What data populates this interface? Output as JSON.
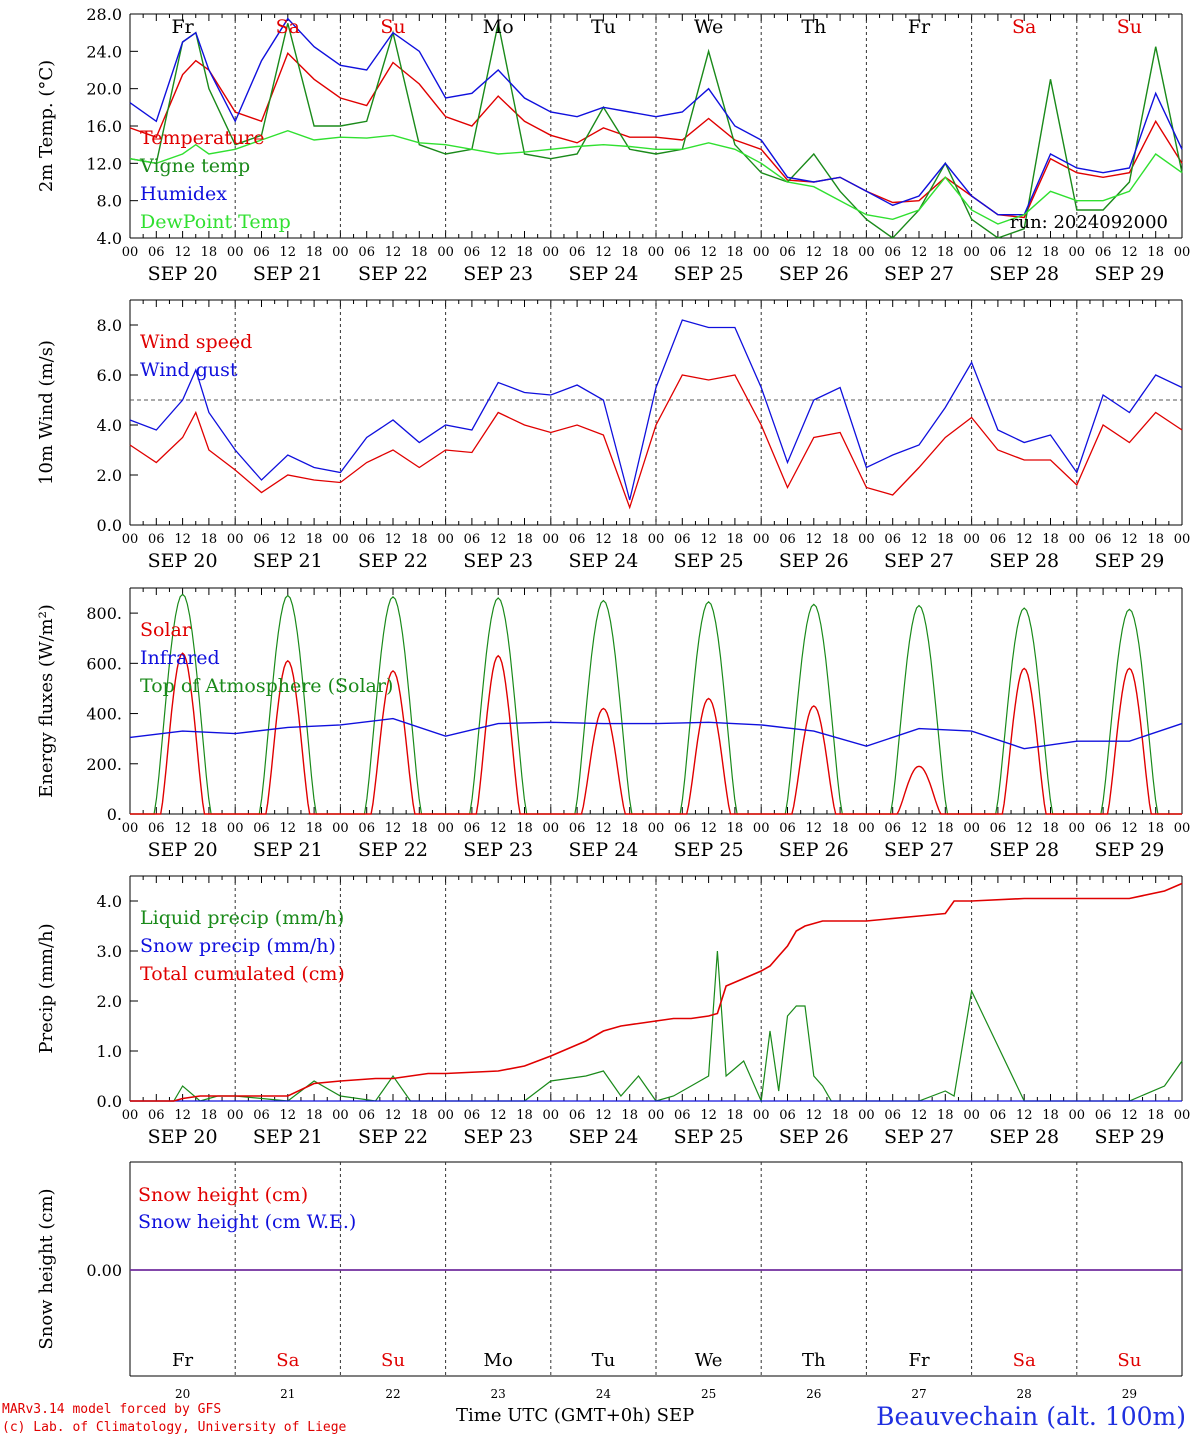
{
  "colors": {
    "red": "#e00000",
    "green": "#1a8a1a",
    "lightgreen": "#30e030",
    "blue": "#1010dd",
    "purple": "#7030a0"
  },
  "day_names": [
    "Fr",
    "Sa",
    "Su",
    "Mo",
    "Tu",
    "We",
    "Th",
    "Fr",
    "Sa",
    "Su"
  ],
  "weekend_flags": [
    false,
    true,
    true,
    false,
    false,
    false,
    false,
    false,
    true,
    true
  ],
  "date_labels": [
    "SEP 20",
    "SEP 21",
    "SEP 22",
    "SEP 23",
    "SEP 24",
    "SEP 25",
    "SEP 26",
    "SEP 27",
    "SEP 28",
    "SEP 29"
  ],
  "day_numbers": [
    "20",
    "21",
    "22",
    "23",
    "24",
    "25",
    "26",
    "27",
    "28",
    "29"
  ],
  "hour_ticks": [
    "00",
    "06",
    "12",
    "18"
  ],
  "hour_tick_last": "00",
  "run_label": "run: 2024092000",
  "footer": {
    "credit_line1": "MARv3.14 model forced by GFS",
    "credit_line2": "(c) Lab. of Climatology, University of Liege",
    "time_axis_label": "Time UTC (GMT+0h)",
    "month_label": "SEP",
    "station": "Beauvechain (alt. 100m)"
  },
  "chart_data": [
    {
      "type": "line",
      "ylabel": "2m Temp. (°C)",
      "ylim": [
        4.0,
        28.0
      ],
      "yticks": [
        "4.0",
        "8.0",
        "12.0",
        "16.0",
        "20.0",
        "24.0",
        "28.0"
      ],
      "x": [
        0,
        6,
        12,
        15,
        18,
        24,
        30,
        36,
        42,
        48,
        54,
        60,
        66,
        72,
        78,
        84,
        90,
        96,
        102,
        108,
        114,
        120,
        126,
        132,
        138,
        144,
        150,
        156,
        162,
        168,
        174,
        180,
        186,
        192,
        198,
        204,
        210,
        216,
        222,
        228,
        234,
        240
      ],
      "series": [
        {
          "name": "Temperature",
          "color": "red",
          "values": [
            15.8,
            14.8,
            21.5,
            23.0,
            22.0,
            17.5,
            16.5,
            23.8,
            21.0,
            19.0,
            18.2,
            22.8,
            20.5,
            17.0,
            16.0,
            19.2,
            16.5,
            15.0,
            14.2,
            15.8,
            14.8,
            14.8,
            14.5,
            16.8,
            14.5,
            13.5,
            10.2,
            10.0,
            10.5,
            9.0,
            7.8,
            8.0,
            10.5,
            8.5,
            6.5,
            6.2,
            12.5,
            11.0,
            10.5,
            11.0,
            16.5,
            12.0
          ]
        },
        {
          "name": "Vigne temp",
          "color": "green",
          "values": [
            12.5,
            12.0,
            25.0,
            26.0,
            20.0,
            14.0,
            15.0,
            27.0,
            16.0,
            16.0,
            16.5,
            26.0,
            14.0,
            13.0,
            13.5,
            27.0,
            13.0,
            12.5,
            13.0,
            18.0,
            13.5,
            13.0,
            13.5,
            24.0,
            14.0,
            11.0,
            10.0,
            13.0,
            9.0,
            6.0,
            4.0,
            7.0,
            12.0,
            6.0,
            4.0,
            5.0,
            21.0,
            7.0,
            7.0,
            10.0,
            24.5,
            11.0
          ]
        },
        {
          "name": "Humidex",
          "color": "blue",
          "values": [
            18.5,
            16.5,
            25.0,
            26.0,
            22.0,
            16.5,
            23.0,
            27.5,
            24.5,
            22.5,
            22.0,
            26.0,
            24.0,
            19.0,
            19.5,
            22.0,
            19.0,
            17.5,
            17.0,
            18.0,
            17.5,
            17.0,
            17.5,
            20.0,
            16.0,
            14.5,
            10.5,
            10.0,
            10.5,
            9.0,
            7.5,
            8.5,
            12.0,
            8.5,
            6.5,
            6.5,
            13.0,
            11.5,
            11.0,
            11.5,
            19.5,
            13.5
          ]
        },
        {
          "name": "DewPoint Temp",
          "color": "lightgreen",
          "values": [
            12.5,
            12.0,
            13.0,
            14.0,
            13.0,
            13.5,
            14.5,
            15.5,
            14.5,
            14.8,
            14.7,
            15.0,
            14.2,
            14.0,
            13.5,
            13.0,
            13.2,
            13.5,
            13.8,
            14.0,
            13.8,
            13.5,
            13.5,
            14.2,
            13.5,
            12.0,
            10.0,
            9.5,
            8.0,
            6.5,
            6.0,
            7.0,
            10.5,
            7.0,
            5.5,
            6.5,
            9.0,
            8.0,
            8.0,
            9.0,
            13.0,
            11.0
          ]
        }
      ]
    },
    {
      "type": "line",
      "ylabel": "10m Wind (m/s)",
      "ylim": [
        0.0,
        9.0
      ],
      "yticks": [
        "0.0",
        "2.0",
        "4.0",
        "6.0",
        "8.0"
      ],
      "reference_line": 5.0,
      "x": [
        0,
        6,
        12,
        15,
        18,
        24,
        30,
        36,
        42,
        48,
        54,
        60,
        66,
        72,
        78,
        84,
        90,
        96,
        102,
        108,
        114,
        120,
        126,
        132,
        138,
        144,
        150,
        156,
        162,
        168,
        174,
        180,
        186,
        192,
        198,
        204,
        210,
        216,
        222,
        228,
        234,
        240
      ],
      "series": [
        {
          "name": "Wind speed",
          "color": "red",
          "values": [
            3.2,
            2.5,
            3.5,
            4.5,
            3.0,
            2.2,
            1.3,
            2.0,
            1.8,
            1.7,
            2.5,
            3.0,
            2.3,
            3.0,
            2.9,
            4.5,
            4.0,
            3.7,
            4.0,
            3.6,
            0.7,
            4.0,
            6.0,
            5.8,
            6.0,
            4.0,
            1.5,
            3.5,
            3.7,
            1.5,
            1.2,
            2.3,
            3.5,
            4.3,
            3.0,
            2.6,
            2.6,
            1.6,
            4.0,
            3.3,
            4.5,
            3.8
          ]
        },
        {
          "name": "Wind gust",
          "color": "blue",
          "values": [
            4.2,
            3.8,
            5.0,
            6.2,
            4.5,
            3.0,
            1.8,
            2.8,
            2.3,
            2.1,
            3.5,
            4.2,
            3.3,
            4.0,
            3.8,
            5.7,
            5.3,
            5.2,
            5.6,
            5.0,
            1.0,
            5.5,
            8.2,
            7.9,
            7.9,
            5.5,
            2.5,
            5.0,
            5.5,
            2.3,
            2.8,
            3.2,
            4.7,
            6.5,
            3.8,
            3.3,
            3.6,
            2.1,
            5.2,
            4.5,
            6.0,
            5.5
          ]
        }
      ]
    },
    {
      "type": "line",
      "ylabel": "Energy fluxes (W/m²)",
      "ylim": [
        0,
        900
      ],
      "yticks": [
        "0.",
        "200.",
        "400.",
        "600.",
        "800."
      ],
      "series": [
        {
          "name": "Solar",
          "color": "red",
          "daily_peaks": [
            640,
            610,
            570,
            630,
            420,
            460,
            430,
            190,
            580,
            580
          ]
        },
        {
          "name": "Infrared",
          "color": "blue",
          "x": [
            0,
            12,
            24,
            36,
            48,
            60,
            72,
            84,
            96,
            108,
            120,
            132,
            144,
            156,
            168,
            180,
            192,
            204,
            216,
            228,
            240
          ],
          "values": [
            305,
            330,
            320,
            345,
            355,
            380,
            310,
            360,
            365,
            360,
            360,
            365,
            355,
            330,
            270,
            340,
            330,
            260,
            290,
            290,
            360
          ]
        },
        {
          "name": "Top of Atmosphere (Solar)",
          "color": "green",
          "daily_peaks": [
            875,
            870,
            865,
            860,
            850,
            845,
            835,
            830,
            820,
            815
          ]
        }
      ]
    },
    {
      "type": "line",
      "ylabel": "Precip (mm/h)",
      "ylim": [
        0.0,
        4.5
      ],
      "yticks": [
        "0.0",
        "1.0",
        "2.0",
        "3.0",
        "4.0"
      ],
      "x": [
        0,
        10,
        12,
        16,
        20,
        24,
        36,
        42,
        48,
        56,
        60,
        64,
        68,
        72,
        84,
        90,
        96,
        104,
        108,
        112,
        116,
        120,
        124,
        128,
        132,
        134,
        136,
        140,
        144,
        146,
        148,
        150,
        152,
        154,
        156,
        158,
        160,
        164,
        168,
        180,
        186,
        188,
        192,
        204,
        216,
        228,
        236,
        240
      ],
      "series": [
        {
          "name": "Liquid precip (mm/h)",
          "color": "green",
          "values": [
            0,
            0,
            0.3,
            0,
            0.1,
            0.1,
            0,
            0.4,
            0.1,
            0,
            0.5,
            0,
            0,
            0,
            0,
            0,
            0.4,
            0.5,
            0.6,
            0.1,
            0.5,
            0,
            0.1,
            0.3,
            0.5,
            3.0,
            0.5,
            0.8,
            0,
            1.4,
            0.2,
            1.7,
            1.9,
            1.9,
            0.5,
            0.3,
            0,
            0,
            0,
            0,
            0.2,
            0.1,
            2.2,
            0,
            0,
            0,
            0.3,
            0.8
          ]
        },
        {
          "name": "Snow precip (mm/h)",
          "color": "blue",
          "values": [
            0,
            0,
            0,
            0,
            0,
            0,
            0,
            0,
            0,
            0,
            0,
            0,
            0,
            0,
            0,
            0,
            0,
            0,
            0,
            0,
            0,
            0,
            0,
            0,
            0,
            0,
            0,
            0,
            0,
            0,
            0,
            0,
            0,
            0,
            0,
            0,
            0,
            0,
            0,
            0,
            0,
            0,
            0,
            0,
            0,
            0,
            0,
            0
          ]
        },
        {
          "name": "Total cumulated (cm)",
          "color": "red",
          "values": [
            0,
            0,
            0.05,
            0.1,
            0.1,
            0.1,
            0.1,
            0.35,
            0.4,
            0.45,
            0.45,
            0.5,
            0.55,
            0.55,
            0.6,
            0.7,
            0.9,
            1.2,
            1.4,
            1.5,
            1.55,
            1.6,
            1.65,
            1.65,
            1.7,
            1.75,
            2.3,
            2.45,
            2.6,
            2.7,
            2.9,
            3.1,
            3.4,
            3.5,
            3.55,
            3.6,
            3.6,
            3.6,
            3.6,
            3.7,
            3.75,
            4.0,
            4.0,
            4.05,
            4.05,
            4.05,
            4.2,
            4.35
          ]
        }
      ]
    },
    {
      "type": "line",
      "ylabel": "Snow height (cm)",
      "ytick": "0.00",
      "series": [
        {
          "name": "Snow height (cm)",
          "color": "red",
          "values": [
            0,
            0
          ]
        },
        {
          "name": "Snow height (cm W.E.)",
          "color": "blue",
          "values": [
            0,
            0
          ]
        }
      ]
    }
  ]
}
